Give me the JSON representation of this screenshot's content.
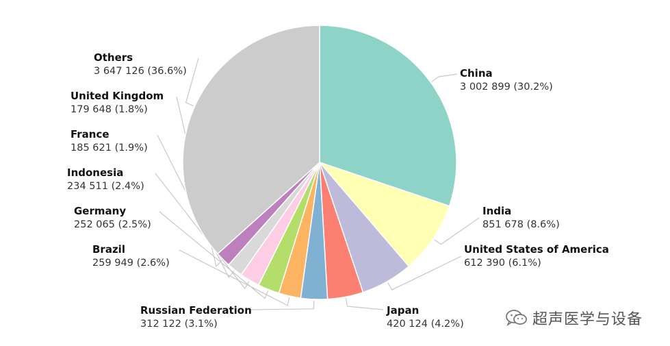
{
  "chart_data": {
    "type": "pie",
    "start_angle_deg": 0,
    "direction": "clockwise",
    "slices": [
      {
        "name": "China",
        "value": 3002899,
        "value_text": "3 002 899 (30.2%)",
        "percent": 30.2,
        "color": "#8dd3c7"
      },
      {
        "name": "India",
        "value": 851678,
        "value_text": "851 678 (8.6%)",
        "percent": 8.6,
        "color": "#ffffb3"
      },
      {
        "name": "United States of America",
        "value": 612390,
        "value_text": "612 390 (6.1%)",
        "percent": 6.1,
        "color": "#bebada"
      },
      {
        "name": "Japan",
        "value": 420124,
        "value_text": "420 124 (4.2%)",
        "percent": 4.2,
        "color": "#fb8072"
      },
      {
        "name": "Russian Federation",
        "value": 312122,
        "value_text": "312 122 (3.1%)",
        "percent": 3.1,
        "color": "#80b1d3"
      },
      {
        "name": "Brazil",
        "value": 259949,
        "value_text": "259 949 (2.6%)",
        "percent": 2.6,
        "color": "#fdb462"
      },
      {
        "name": "Germany",
        "value": 252065,
        "value_text": "252 065 (2.5%)",
        "percent": 2.5,
        "color": "#b3de69"
      },
      {
        "name": "Indonesia",
        "value": 234511,
        "value_text": "234 511 (2.4%)",
        "percent": 2.4,
        "color": "#fccde5"
      },
      {
        "name": "France",
        "value": 185621,
        "value_text": "185 621 (1.9%)",
        "percent": 1.9,
        "color": "#d9d9d9"
      },
      {
        "name": "United Kingdom",
        "value": 179648,
        "value_text": "179 648 (1.8%)",
        "percent": 1.8,
        "color": "#bc80bd"
      },
      {
        "name": "Others",
        "value": 3647126,
        "value_text": "3 647 126 (36.6%)",
        "percent": 36.6,
        "color": "#cccccc"
      }
    ]
  },
  "watermark": {
    "text": "超声医学与设备",
    "icon": "wechat-icon"
  }
}
